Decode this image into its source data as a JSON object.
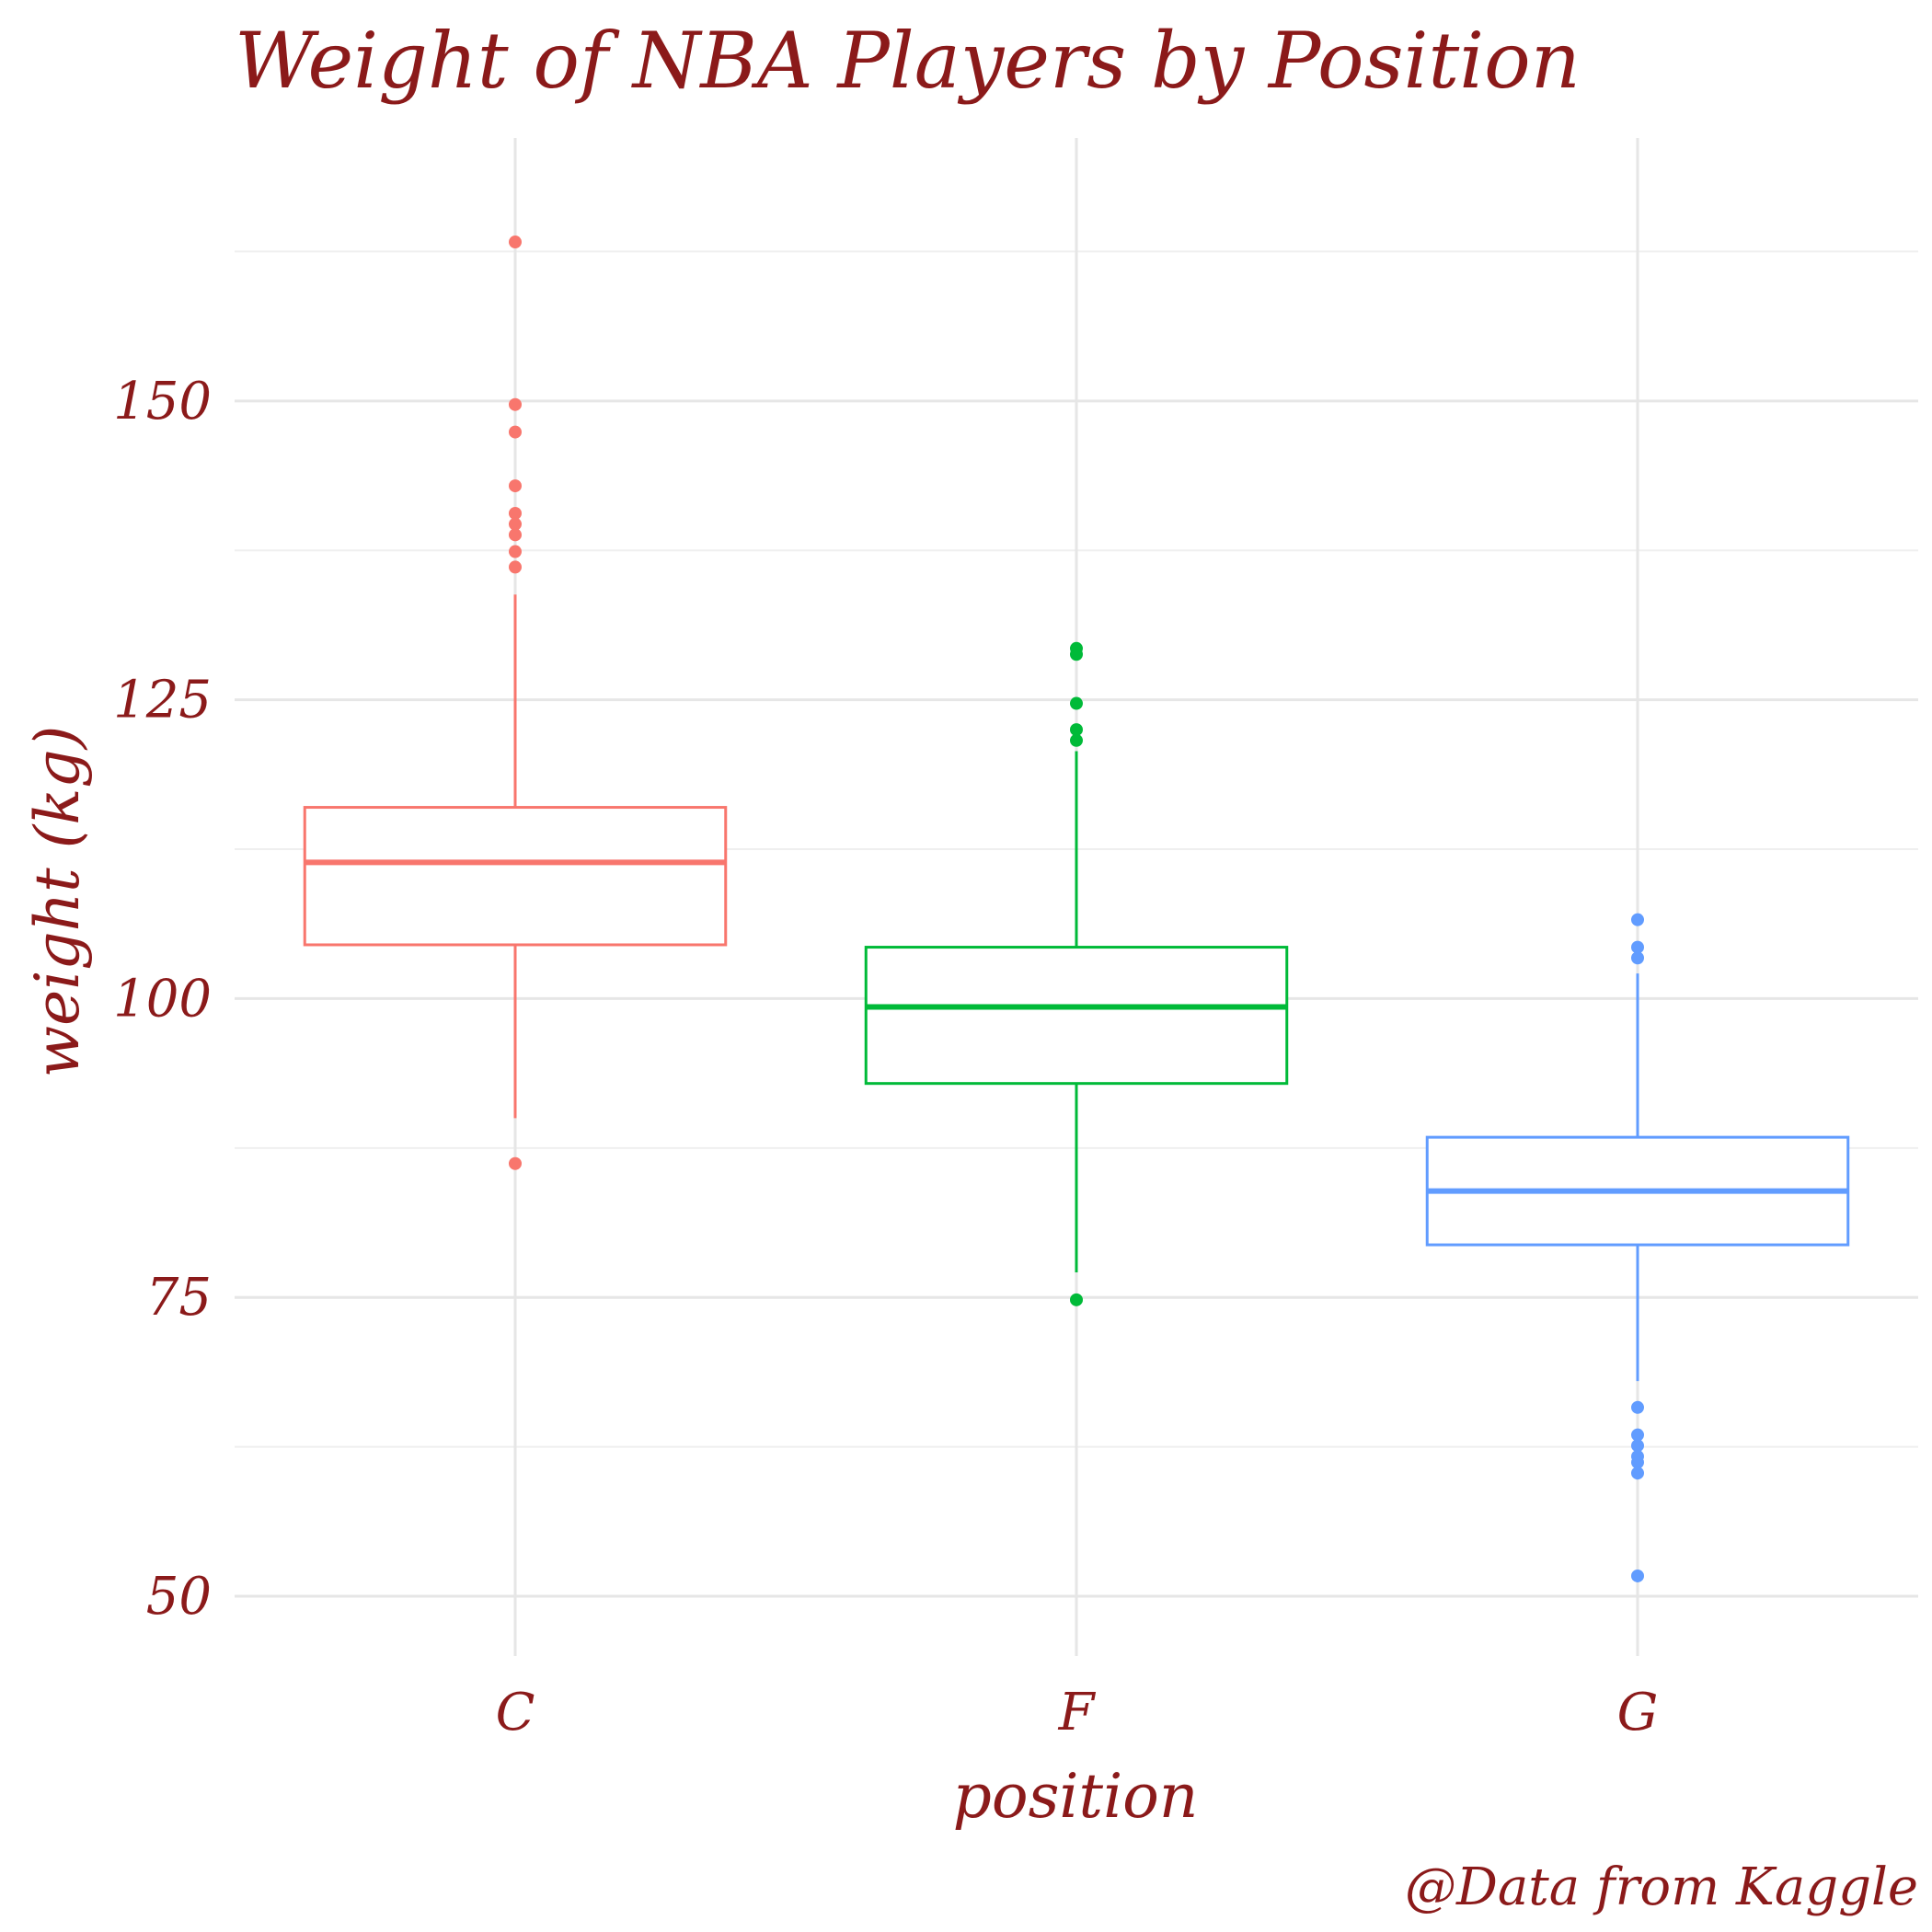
{
  "chart_data": {
    "type": "box",
    "title": "Weight of NBA Players by Position",
    "xlabel": "position",
    "ylabel": "weight (kg)",
    "caption": "@Data from Kaggle",
    "categories": [
      "C",
      "F",
      "G"
    ],
    "colors": [
      "#f8766d",
      "#00ba38",
      "#619cff"
    ],
    "ylim": [
      45,
      172
    ],
    "yticks": [
      50,
      75,
      100,
      125,
      150
    ],
    "grid": true,
    "legend": "none",
    "boxes": [
      {
        "category": "C",
        "lower_whisker": 90,
        "q1": 104.5,
        "median": 111.4,
        "q3": 116.0,
        "upper_whisker": 133.8,
        "outliers": [
          86.2,
          163.3,
          149.7,
          147.4,
          142.9,
          140.6,
          139.7,
          138.8,
          137.4,
          136.1
        ]
      },
      {
        "category": "F",
        "lower_whisker": 77.1,
        "q1": 92.9,
        "median": 99.3,
        "q3": 104.3,
        "upper_whisker": 120.7,
        "outliers": [
          74.8,
          121.6,
          122.5,
          124.7,
          128.8,
          129.3
        ]
      },
      {
        "category": "G",
        "lower_whisker": 68.0,
        "q1": 79.4,
        "median": 83.9,
        "q3": 88.4,
        "upper_whisker": 102.1,
        "outliers": [
          51.7,
          60.3,
          61.2,
          61.7,
          62.6,
          63.5,
          65.8,
          103.4,
          104.3,
          106.6
        ]
      }
    ]
  }
}
